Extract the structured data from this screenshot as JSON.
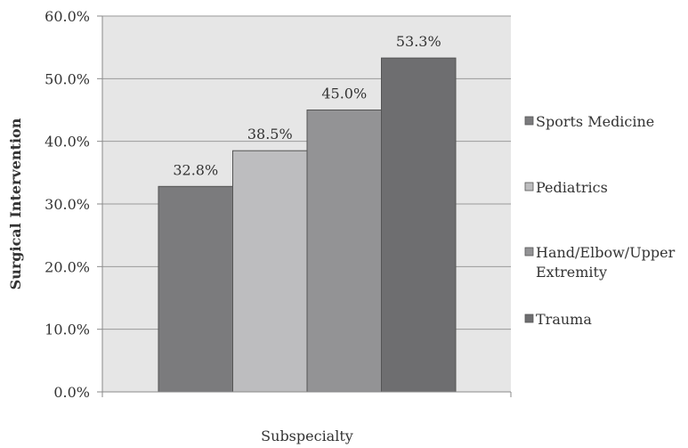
{
  "chart_data": {
    "type": "bar",
    "ylabel": "Surgical Intervention",
    "xlabel": "Subspecialty",
    "ylim": [
      0,
      60
    ],
    "y_ticks": [
      "0.0%",
      "10.0%",
      "20.0%",
      "30.0%",
      "40.0%",
      "50.0%",
      "60.0%"
    ],
    "grid": "horizontal",
    "plot_background": "#e6e6e6",
    "legend_position": "right",
    "series": [
      {
        "name": "Sports Medicine",
        "value": 32.8,
        "label": "32.8%",
        "color": "#7b7b7d"
      },
      {
        "name": "Pediatrics",
        "value": 38.5,
        "label": "38.5%",
        "color": "#bdbdbf"
      },
      {
        "name": "Hand/Elbow/Upper Extremity",
        "legend_lines": [
          "Hand/Elbow/Upper",
          "Extremity"
        ],
        "value": 45.0,
        "label": "45.0%",
        "color": "#939395"
      },
      {
        "name": "Trauma",
        "value": 53.3,
        "label": "53.3%",
        "color": "#6e6e70"
      }
    ]
  }
}
